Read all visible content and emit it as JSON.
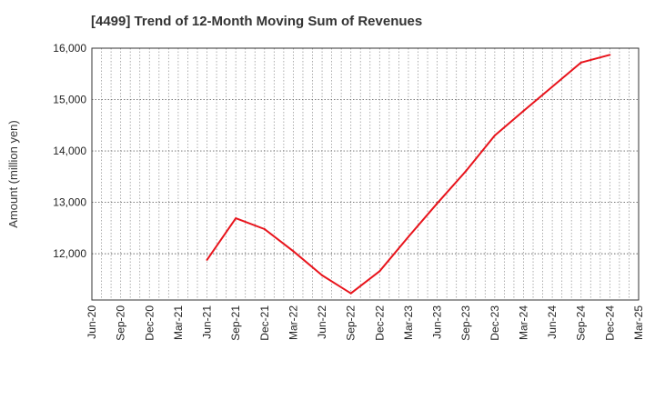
{
  "chart_data": {
    "type": "line",
    "title": "[4499]  Trend of 12-Month Moving Sum of Revenues",
    "xlabel": "",
    "ylabel": "Amount (million yen)",
    "ylim": [
      11100,
      16000
    ],
    "yticks": [
      12000,
      13000,
      14000,
      15000,
      16000
    ],
    "ytick_labels": [
      "12,000",
      "13,000",
      "14,000",
      "15,000",
      "16,000"
    ],
    "x_tick_labels": [
      "Jun-20",
      "Sep-20",
      "Dec-20",
      "Mar-21",
      "Jun-21",
      "Sep-21",
      "Dec-21",
      "Mar-22",
      "Jun-22",
      "Sep-22",
      "Dec-22",
      "Mar-23",
      "Jun-23",
      "Sep-23",
      "Dec-23",
      "Mar-24",
      "Jun-24",
      "Sep-24",
      "Dec-24",
      "Mar-25"
    ],
    "grid": true,
    "series_color": "#e8141c",
    "series": [
      {
        "x": [
          "Jun-21",
          "Sep-21",
          "Dec-21",
          "Mar-22",
          "Jun-22",
          "Sep-22",
          "Dec-22",
          "Mar-23",
          "Jun-23",
          "Sep-23",
          "Dec-23",
          "Mar-24",
          "Jun-24",
          "Sep-24",
          "Dec-24"
        ],
        "values": [
          11880,
          12690,
          12480,
          12050,
          11580,
          11230,
          11660,
          12330,
          12980,
          13610,
          14300,
          14780,
          15250,
          15720,
          15870
        ]
      }
    ]
  }
}
